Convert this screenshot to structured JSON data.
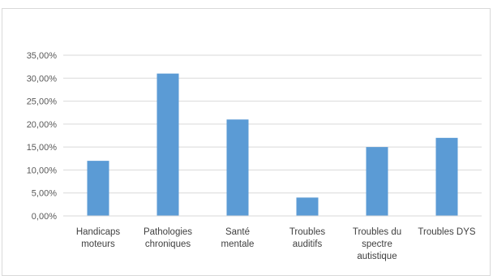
{
  "chart_data": {
    "type": "bar",
    "title": "",
    "xlabel": "",
    "ylabel": "",
    "categories": [
      [
        "Handicaps",
        "moteurs"
      ],
      [
        "Pathologies",
        "chroniques"
      ],
      [
        "Santé",
        "mentale"
      ],
      [
        "Troubles",
        "auditifs"
      ],
      [
        "Troubles du",
        "spectre",
        "autistique"
      ],
      [
        "Troubles DYS"
      ]
    ],
    "values": [
      12,
      31,
      21,
      4,
      15,
      17
    ],
    "ylim": [
      0,
      35
    ],
    "yticks": [
      "0,00%",
      "5,00%",
      "10,00%",
      "15,00%",
      "20,00%",
      "25,00%",
      "30,00%",
      "35,00%"
    ],
    "grid": true,
    "legend": "none",
    "bar_color": "#5B9BD5",
    "grid_color": "#d9d9d9"
  }
}
